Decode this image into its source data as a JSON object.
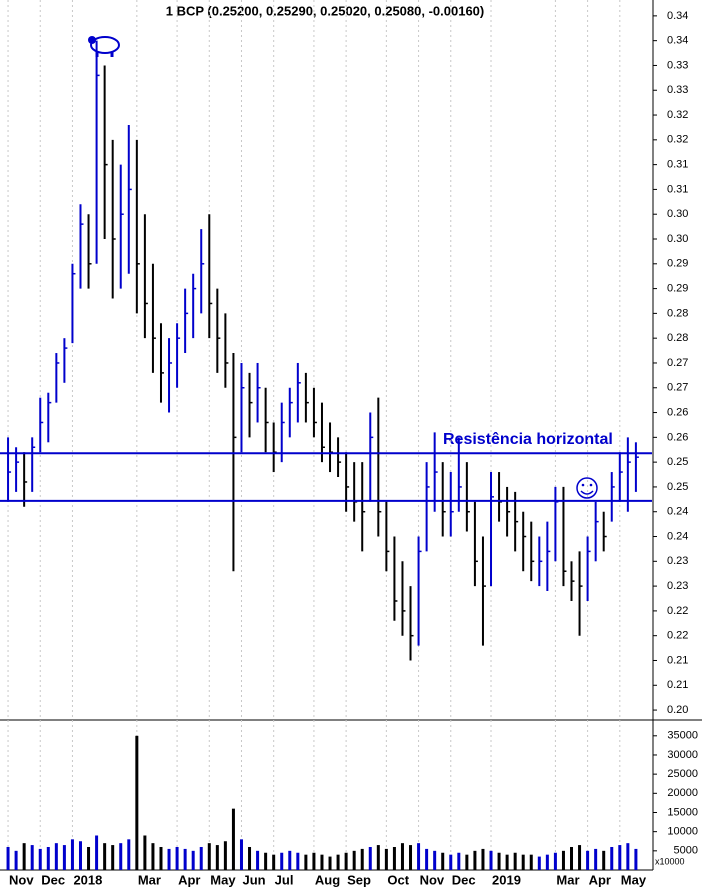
{
  "chart_data": [
    {
      "type": "hlc",
      "title": "1 BCP (0.25200, 0.25290, 0.25020, 0.25080, -0.00160)",
      "annotation": "Resistência horizontal",
      "up_color": "#0000cc",
      "down_color": "#000000",
      "xlim": [
        -1,
        80
      ],
      "xticks": [
        {
          "value": 0,
          "label": "Nov"
        },
        {
          "value": 4,
          "label": "Dec"
        },
        {
          "value": 8,
          "label": "2018"
        },
        {
          "value": 16,
          "label": "Mar"
        },
        {
          "value": 21,
          "label": "Apr"
        },
        {
          "value": 25,
          "label": "May"
        },
        {
          "value": 29,
          "label": "Jun"
        },
        {
          "value": 33,
          "label": "Jul"
        },
        {
          "value": 38,
          "label": "Aug"
        },
        {
          "value": 42,
          "label": "Sep"
        },
        {
          "value": 47,
          "label": "Oct"
        },
        {
          "value": 51,
          "label": "Nov"
        },
        {
          "value": 55,
          "label": "Dec"
        },
        {
          "value": 60,
          "label": "2019"
        },
        {
          "value": 68,
          "label": "Mar"
        },
        {
          "value": 72,
          "label": "Apr"
        },
        {
          "value": 76,
          "label": "May"
        }
      ],
      "ylim": [
        0.1984,
        0.3432
      ],
      "yticks": [
        {
          "value": 0.2,
          "label": "0.20"
        },
        {
          "value": 0.205,
          "label": "0.21"
        },
        {
          "value": 0.21,
          "label": "0.21"
        },
        {
          "value": 0.215,
          "label": "0.22"
        },
        {
          "value": 0.22,
          "label": "0.22"
        },
        {
          "value": 0.225,
          "label": "0.23"
        },
        {
          "value": 0.23,
          "label": "0.23"
        },
        {
          "value": 0.235,
          "label": "0.24"
        },
        {
          "value": 0.24,
          "label": "0.24"
        },
        {
          "value": 0.245,
          "label": "0.25"
        },
        {
          "value": 0.25,
          "label": "0.25"
        },
        {
          "value": 0.255,
          "label": "0.26"
        },
        {
          "value": 0.26,
          "label": "0.26"
        },
        {
          "value": 0.265,
          "label": "0.27"
        },
        {
          "value": 0.27,
          "label": "0.27"
        },
        {
          "value": 0.275,
          "label": "0.28"
        },
        {
          "value": 0.28,
          "label": "0.28"
        },
        {
          "value": 0.285,
          "label": "0.29"
        },
        {
          "value": 0.29,
          "label": "0.29"
        },
        {
          "value": 0.295,
          "label": "0.30"
        },
        {
          "value": 0.3,
          "label": "0.30"
        },
        {
          "value": 0.305,
          "label": "0.31"
        },
        {
          "value": 0.31,
          "label": "0.31"
        },
        {
          "value": 0.315,
          "label": "0.32"
        },
        {
          "value": 0.32,
          "label": "0.32"
        },
        {
          "value": 0.325,
          "label": "0.33"
        },
        {
          "value": 0.33,
          "label": "0.33"
        },
        {
          "value": 0.335,
          "label": "0.34"
        },
        {
          "value": 0.34,
          "label": "0.34"
        }
      ],
      "hlines": [
        0.2518,
        0.2422
      ],
      "hline_color": "#0000cc",
      "high": [
        0.255,
        0.253,
        0.252,
        0.255,
        0.263,
        0.264,
        0.272,
        0.275,
        0.29,
        0.302,
        0.3,
        0.335,
        0.33,
        0.315,
        0.31,
        0.318,
        0.315,
        0.3,
        0.29,
        0.278,
        0.275,
        0.278,
        0.285,
        0.288,
        0.297,
        0.3,
        0.285,
        0.28,
        0.272,
        0.27,
        0.268,
        0.27,
        0.265,
        0.258,
        0.262,
        0.265,
        0.27,
        0.268,
        0.265,
        0.262,
        0.258,
        0.255,
        0.252,
        0.25,
        0.25,
        0.26,
        0.263,
        0.242,
        0.235,
        0.23,
        0.225,
        0.235,
        0.25,
        0.256,
        0.25,
        0.248,
        0.255,
        0.25,
        0.242,
        0.235,
        0.248,
        0.248,
        0.245,
        0.244,
        0.24,
        0.238,
        0.235,
        0.238,
        0.245,
        0.245,
        0.23,
        0.232,
        0.235,
        0.242,
        0.24,
        0.248,
        0.252,
        0.255,
        0.254
      ],
      "low": [
        0.242,
        0.244,
        0.241,
        0.244,
        0.252,
        0.254,
        0.262,
        0.266,
        0.274,
        0.285,
        0.285,
        0.29,
        0.295,
        0.283,
        0.285,
        0.288,
        0.28,
        0.275,
        0.268,
        0.262,
        0.26,
        0.265,
        0.272,
        0.275,
        0.28,
        0.275,
        0.268,
        0.265,
        0.228,
        0.252,
        0.255,
        0.258,
        0.252,
        0.248,
        0.25,
        0.255,
        0.258,
        0.258,
        0.255,
        0.25,
        0.248,
        0.247,
        0.24,
        0.238,
        0.232,
        0.242,
        0.235,
        0.228,
        0.218,
        0.215,
        0.21,
        0.213,
        0.232,
        0.24,
        0.235,
        0.235,
        0.24,
        0.236,
        0.225,
        0.213,
        0.225,
        0.238,
        0.235,
        0.232,
        0.228,
        0.226,
        0.225,
        0.224,
        0.23,
        0.225,
        0.222,
        0.215,
        0.222,
        0.23,
        0.232,
        0.238,
        0.242,
        0.24,
        0.244
      ],
      "close": [
        0.248,
        0.25,
        0.246,
        0.253,
        0.258,
        0.262,
        0.27,
        0.273,
        0.288,
        0.298,
        0.29,
        0.328,
        0.31,
        0.295,
        0.3,
        0.305,
        0.29,
        0.282,
        0.275,
        0.268,
        0.27,
        0.275,
        0.28,
        0.285,
        0.29,
        0.282,
        0.275,
        0.27,
        0.255,
        0.265,
        0.262,
        0.265,
        0.258,
        0.252,
        0.258,
        0.262,
        0.266,
        0.262,
        0.258,
        0.253,
        0.252,
        0.25,
        0.245,
        0.242,
        0.24,
        0.255,
        0.24,
        0.232,
        0.222,
        0.22,
        0.215,
        0.232,
        0.245,
        0.248,
        0.24,
        0.24,
        0.245,
        0.24,
        0.23,
        0.225,
        0.243,
        0.242,
        0.24,
        0.238,
        0.235,
        0.23,
        0.23,
        0.232,
        0.242,
        0.228,
        0.226,
        0.225,
        0.232,
        0.238,
        0.235,
        0.245,
        0.248,
        0.25,
        0.251
      ]
    },
    {
      "type": "volume",
      "unit_label": "x10000",
      "ylim": [
        0,
        38600
      ],
      "yticks": [
        5000,
        10000,
        15000,
        20000,
        25000,
        30000,
        35000
      ],
      "values": [
        6000,
        5000,
        7000,
        6500,
        5500,
        6000,
        7000,
        6500,
        8000,
        7500,
        6000,
        9000,
        7000,
        6500,
        7000,
        8000,
        35000,
        9000,
        7000,
        6000,
        5500,
        6000,
        5500,
        5000,
        6000,
        7000,
        6500,
        7500,
        16000,
        8000,
        6000,
        5000,
        4500,
        4000,
        4500,
        5000,
        4500,
        4000,
        4500,
        4000,
        3500,
        4000,
        4500,
        5000,
        5500,
        6000,
        6500,
        5500,
        6000,
        7000,
        6500,
        7000,
        5500,
        5000,
        4500,
        4000,
        4500,
        4000,
        5000,
        5500,
        5000,
        4500,
        4000,
        4500,
        4000,
        4000,
        3500,
        4000,
        4500,
        5000,
        6000,
        6500,
        5000,
        5500,
        5000,
        6000,
        6500,
        7000,
        5500
      ]
    }
  ]
}
